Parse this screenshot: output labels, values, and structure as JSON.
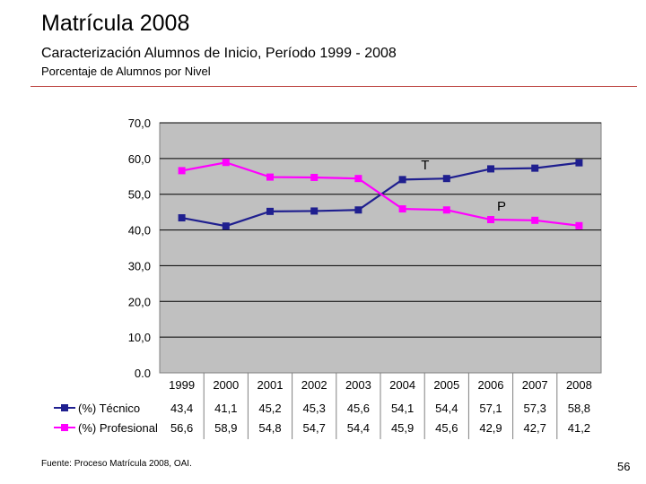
{
  "slide": {
    "title": "Matrícula 2008",
    "subtitle": "Caracterización Alumnos de Inicio, Período 1999 - 2008",
    "subtitle2": "Porcentaje de Alumnos por Nivel",
    "source": "Fuente: Proceso Matrícula 2008, OAI.",
    "page_number": "56"
  },
  "chart_data": {
    "type": "line",
    "title": "Porcentaje de Alumnos por Nivel",
    "categories": [
      "1999",
      "2000",
      "2001",
      "2002",
      "2003",
      "2004",
      "2005",
      "2006",
      "2007",
      "2008"
    ],
    "ylim": [
      0,
      70
    ],
    "yticks": [
      "0.0",
      "10,0",
      "20,0",
      "30,0",
      "40,0",
      "50,0",
      "60,0",
      "70,0"
    ],
    "grid": true,
    "series": [
      {
        "name": "(%) Técnico",
        "color": "#1f1f8f",
        "values": [
          43.4,
          41.1,
          45.2,
          45.3,
          45.6,
          54.1,
          54.4,
          57.1,
          57.3,
          58.8
        ],
        "labels": [
          "43,4",
          "41,1",
          "45,2",
          "45,3",
          "45,6",
          "54,1",
          "54,4",
          "57,1",
          "57,3",
          "58,8"
        ]
      },
      {
        "name": "(%) Profesional",
        "color": "#ff00ff",
        "values": [
          56.6,
          58.9,
          54.8,
          54.7,
          54.4,
          45.9,
          45.6,
          42.9,
          42.7,
          41.2
        ],
        "labels": [
          "56,6",
          "58,9",
          "54,8",
          "54,7",
          "54,4",
          "45,9",
          "45,6",
          "42,9",
          "42,7",
          "41,2"
        ]
      }
    ],
    "annotations": [
      {
        "text": "T",
        "series": 0,
        "category": "2005"
      },
      {
        "text": "P",
        "series": 1,
        "category": "2006"
      }
    ]
  }
}
